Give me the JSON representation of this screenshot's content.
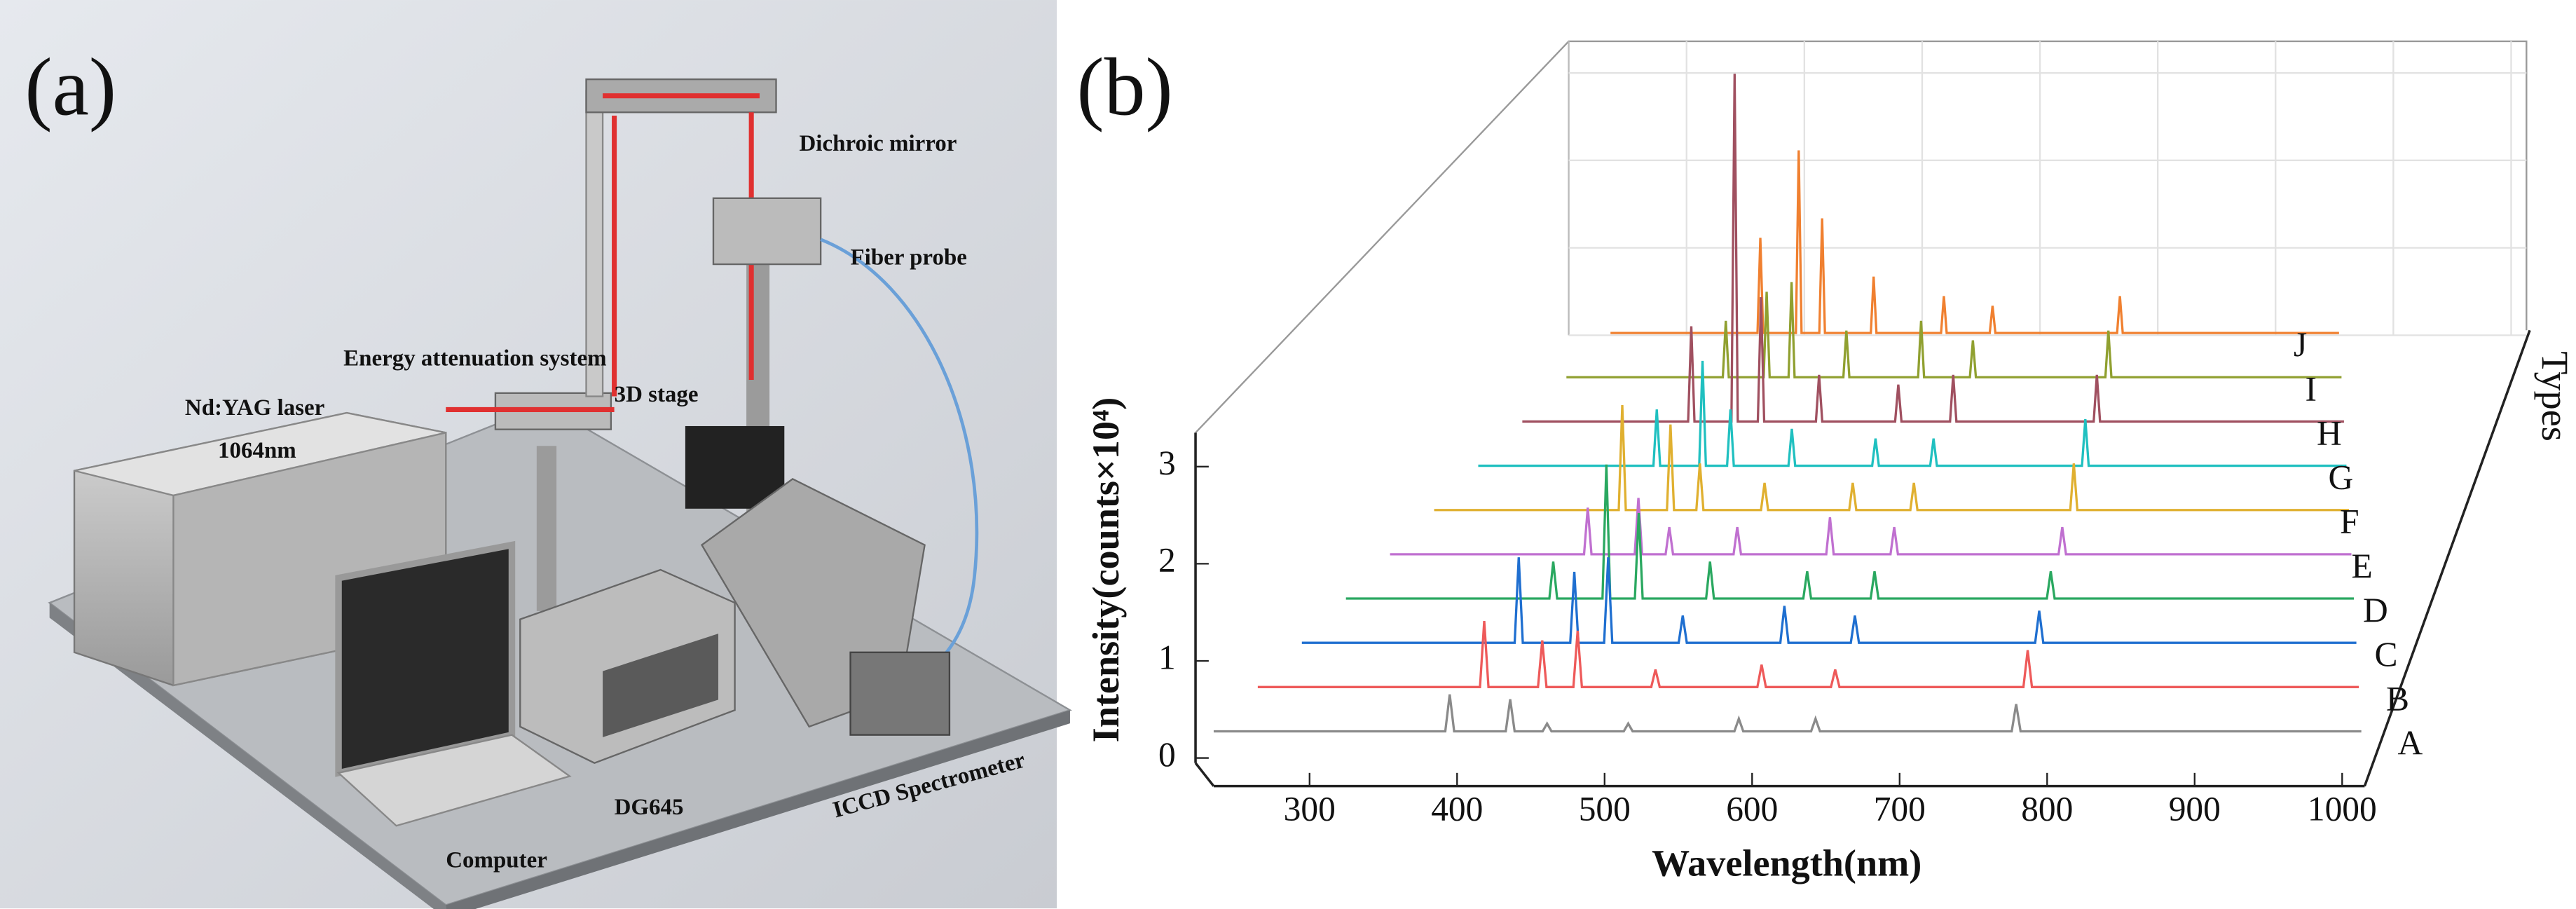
{
  "panel_a": {
    "label": "(a)",
    "callouts": [
      "Dichroic mirror",
      "Fiber probe",
      "Nd:YAG laser",
      "1064nm",
      "Energy attenuation system",
      "3D stage",
      "Computer",
      "DG645",
      "ICCD Spectrometer"
    ]
  },
  "chart_data": {
    "type": "waterfall",
    "label": "(b)",
    "x_label": "Wavelength(nm)",
    "y_label": "Intensity(counts×10⁴)",
    "z_label": "Types",
    "xlim": [
      235,
      1013
    ],
    "xticks": [
      300,
      400,
      500,
      600,
      700,
      800,
      900,
      1000
    ],
    "ylim": [
      0,
      3.4
    ],
    "yticks": [
      0,
      1,
      2,
      3
    ],
    "grid": true,
    "x": [
      235,
      392,
      395,
      398,
      433,
      436,
      439,
      458,
      461,
      464,
      513,
      516,
      519,
      588,
      591,
      594,
      640,
      643,
      646,
      776,
      779,
      782,
      1013
    ],
    "series": [
      {
        "name": "A",
        "color": "#8a8a8a",
        "values": [
          0.02,
          0.02,
          0.4,
          0.02,
          0.02,
          0.35,
          0.02,
          0.02,
          0.1,
          0.02,
          0.02,
          0.1,
          0.02,
          0.02,
          0.15,
          0.02,
          0.02,
          0.15,
          0.02,
          0.02,
          0.3,
          0.02,
          0.02
        ]
      },
      {
        "name": "B",
        "color": "#ee5a5a",
        "values": [
          0.02,
          0.02,
          0.7,
          0.02,
          0.02,
          0.5,
          0.02,
          0.02,
          0.6,
          0.02,
          0.02,
          0.2,
          0.02,
          0.02,
          0.25,
          0.02,
          0.02,
          0.2,
          0.02,
          0.02,
          0.4,
          0.02,
          0.02
        ]
      },
      {
        "name": "C",
        "color": "#1f6fd0",
        "values": [
          0.02,
          0.02,
          0.9,
          0.02,
          0.02,
          0.75,
          0.02,
          0.02,
          0.9,
          0.02,
          0.02,
          0.3,
          0.02,
          0.02,
          0.4,
          0.02,
          0.02,
          0.3,
          0.02,
          0.02,
          0.35,
          0.02,
          0.02
        ]
      },
      {
        "name": "D",
        "color": "#2aa860",
        "values": [
          0.02,
          0.02,
          0.4,
          0.02,
          0.02,
          1.4,
          0.02,
          0.02,
          0.9,
          0.02,
          0.02,
          0.4,
          0.02,
          0.02,
          0.3,
          0.02,
          0.02,
          0.3,
          0.02,
          0.02,
          0.3,
          0.02,
          0.02
        ]
      },
      {
        "name": "E",
        "color": "#c070d0",
        "values": [
          0.02,
          0.02,
          0.5,
          0.02,
          0.02,
          0.6,
          0.02,
          0.02,
          0.3,
          0.02,
          0.02,
          0.3,
          0.02,
          0.02,
          0.4,
          0.02,
          0.02,
          0.3,
          0.02,
          0.02,
          0.3,
          0.02,
          0.02
        ]
      },
      {
        "name": "F",
        "color": "#e0b030",
        "values": [
          0.02,
          0.02,
          1.1,
          0.02,
          0.02,
          0.9,
          0.02,
          0.02,
          0.5,
          0.02,
          0.02,
          0.3,
          0.02,
          0.02,
          0.3,
          0.02,
          0.02,
          0.3,
          0.02,
          0.02,
          0.5,
          0.02,
          0.02
        ]
      },
      {
        "name": "G",
        "color": "#20c0c0",
        "values": [
          0.02,
          0.02,
          0.6,
          0.02,
          0.02,
          1.1,
          0.02,
          0.02,
          0.6,
          0.02,
          0.02,
          0.4,
          0.02,
          0.02,
          0.3,
          0.02,
          0.02,
          0.3,
          0.02,
          0.02,
          0.5,
          0.02,
          0.02
        ]
      },
      {
        "name": "H",
        "color": "#a05060",
        "values": [
          0.02,
          0.02,
          1.0,
          0.02,
          0.02,
          3.6,
          0.02,
          0.02,
          1.3,
          0.02,
          0.02,
          0.5,
          0.02,
          0.02,
          0.4,
          0.02,
          0.02,
          0.5,
          0.02,
          0.02,
          0.5,
          0.02,
          0.02
        ]
      },
      {
        "name": "I",
        "color": "#90a030",
        "values": [
          0.02,
          0.02,
          0.6,
          0.02,
          0.02,
          0.9,
          0.02,
          0.02,
          1.0,
          0.02,
          0.02,
          0.5,
          0.02,
          0.02,
          0.6,
          0.02,
          0.02,
          0.4,
          0.02,
          0.02,
          0.5,
          0.02,
          0.02
        ]
      },
      {
        "name": "J",
        "color": "#f08030",
        "values": [
          0.02,
          0.02,
          1.0,
          0.02,
          0.02,
          1.9,
          0.02,
          0.02,
          1.2,
          0.02,
          0.02,
          0.6,
          0.02,
          0.02,
          0.4,
          0.02,
          0.02,
          0.3,
          0.02,
          0.02,
          0.4,
          0.02,
          0.02
        ]
      }
    ]
  }
}
